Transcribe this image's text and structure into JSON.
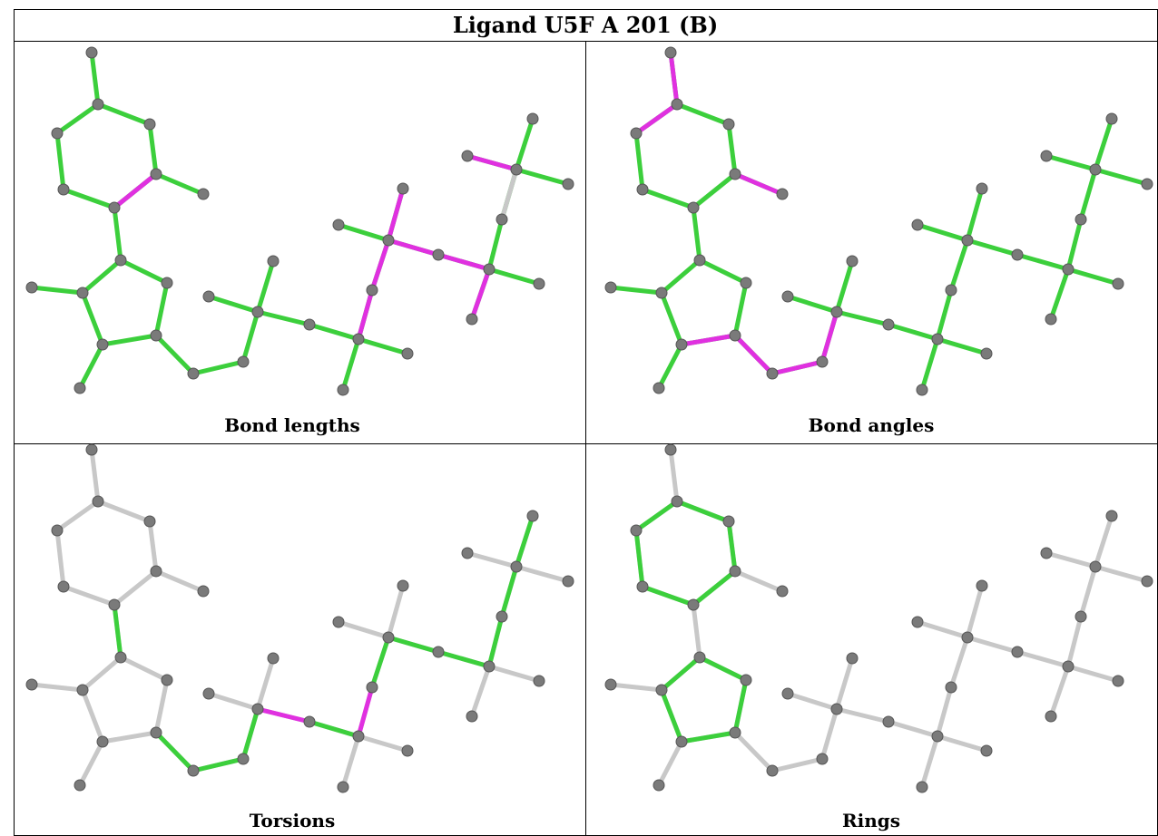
{
  "title": "Ligand U5F A 201 (B)",
  "panels": [
    {
      "label": "Bond lengths"
    },
    {
      "label": "Bond angles"
    },
    {
      "label": "Torsions"
    },
    {
      "label": "Rings"
    }
  ]
}
